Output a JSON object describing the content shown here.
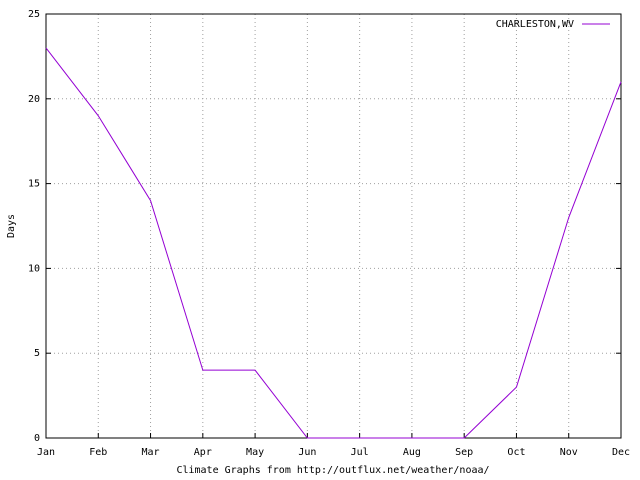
{
  "chart_data": {
    "type": "line",
    "xlabel": "Climate Graphs from http://outflux.net/weather/noaa/",
    "ylabel": "Days",
    "categories": [
      "Jan",
      "Feb",
      "Mar",
      "Apr",
      "May",
      "Jun",
      "Jul",
      "Aug",
      "Sep",
      "Oct",
      "Nov",
      "Dec"
    ],
    "series": [
      {
        "name": "CHARLESTON,WV",
        "color": "#9400d3",
        "values": [
          23,
          19,
          14,
          4,
          4,
          0,
          0,
          0,
          0,
          3,
          13,
          21
        ]
      }
    ],
    "ylim": [
      0,
      25
    ],
    "yticks": [
      0,
      5,
      10,
      15,
      20,
      25
    ],
    "grid": true,
    "legend": "top-right"
  }
}
